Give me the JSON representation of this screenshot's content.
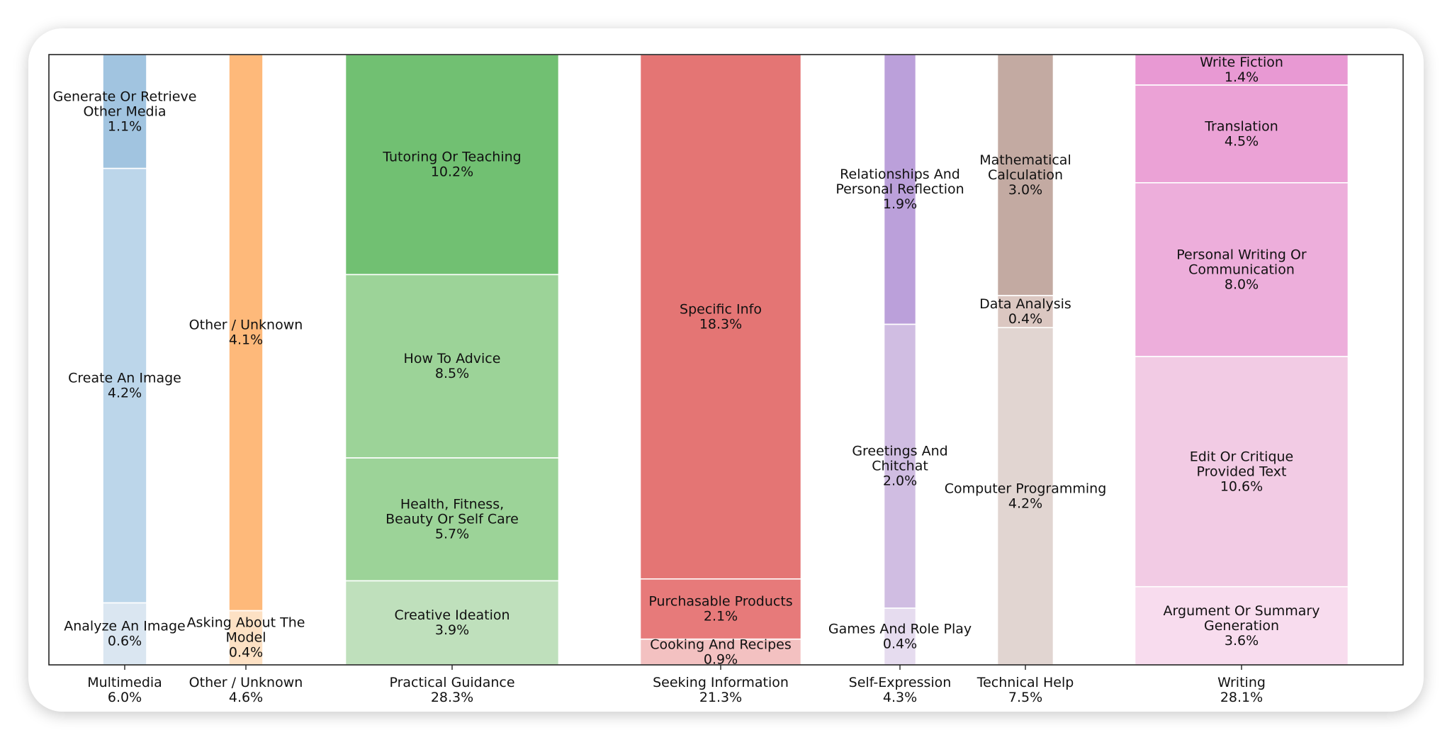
{
  "chart_data": {
    "type": "marimekko",
    "title": "",
    "xlabel": "",
    "ylabel": "",
    "legend": "none",
    "grid": false,
    "categories": [
      {
        "name": "Multimedia",
        "share": "6.0%",
        "total": 6.0,
        "segments": [
          {
            "label": [
              "Analyze An Image"
            ],
            "pct": "0.6%",
            "value": 0.6,
            "color": "#dae6f1"
          },
          {
            "label": [
              "Create An Image"
            ],
            "pct": "4.2%",
            "value": 4.2,
            "color": "#bcd6ea"
          },
          {
            "label": [
              "Generate Or Retrieve",
              "Other Media"
            ],
            "pct": "1.1%",
            "value": 1.1,
            "color": "#a1c4e0"
          }
        ]
      },
      {
        "name": "Other / Unknown",
        "share": "4.6%",
        "total": 4.6,
        "segments": [
          {
            "label": [
              "Asking About The",
              "Model"
            ],
            "pct": "0.4%",
            "value": 0.4,
            "color": "#fde1c4"
          },
          {
            "label": [
              "Other / Unknown"
            ],
            "pct": "4.1%",
            "value": 4.1,
            "color": "#feb97a"
          }
        ]
      },
      {
        "name": "Practical Guidance",
        "share": "28.3%",
        "total": 28.3,
        "segments": [
          {
            "label": [
              "Creative Ideation"
            ],
            "pct": "3.9%",
            "value": 3.9,
            "color": "#bfe0bc"
          },
          {
            "label": [
              "Health, Fitness,",
              "Beauty Or Self Care"
            ],
            "pct": "5.7%",
            "value": 5.7,
            "color": "#9cd398"
          },
          {
            "label": [
              "How To Advice"
            ],
            "pct": "8.5%",
            "value": 8.5,
            "color": "#9cd398"
          },
          {
            "label": [
              "Tutoring Or Teaching"
            ],
            "pct": "10.2%",
            "value": 10.2,
            "color": "#71c072"
          }
        ]
      },
      {
        "name": "Seeking Information",
        "share": "21.3%",
        "total": 21.3,
        "segments": [
          {
            "label": [
              "Cooking And Recipes"
            ],
            "pct": "0.9%",
            "value": 0.9,
            "color": "#f3c1c1"
          },
          {
            "label": [
              "Purchasable Products"
            ],
            "pct": "2.1%",
            "value": 2.1,
            "color": "#e77a7a"
          },
          {
            "label": [
              "Specific Info"
            ],
            "pct": "18.3%",
            "value": 18.3,
            "color": "#e47574"
          }
        ]
      },
      {
        "name": "Self-Expression",
        "share": "4.3%",
        "total": 4.3,
        "segments": [
          {
            "label": [
              "Games And Role Play"
            ],
            "pct": "0.4%",
            "value": 0.4,
            "color": "#e6dcef"
          },
          {
            "label": [
              "Greetings And",
              "Chitchat"
            ],
            "pct": "2.0%",
            "value": 2.0,
            "color": "#d0bde2"
          },
          {
            "label": [
              "Relationships And",
              "Personal Reflection"
            ],
            "pct": "1.9%",
            "value": 1.9,
            "color": "#bba0da"
          }
        ]
      },
      {
        "name": "Technical Help",
        "share": "7.5%",
        "total": 7.5,
        "segments": [
          {
            "label": [
              "Computer Programming"
            ],
            "pct": "4.2%",
            "value": 4.2,
            "color": "#e1d5d1"
          },
          {
            "label": [
              "Data Analysis"
            ],
            "pct": "0.4%",
            "value": 0.4,
            "color": "#dbc7c1"
          },
          {
            "label": [
              "Mathematical",
              "Calculation"
            ],
            "pct": "3.0%",
            "value": 3.0,
            "color": "#c3aaa2"
          }
        ]
      },
      {
        "name": "Writing",
        "share": "28.1%",
        "total": 28.1,
        "segments": [
          {
            "label": [
              "Argument Or Summary",
              "Generation"
            ],
            "pct": "3.6%",
            "value": 3.6,
            "color": "#f8dcee"
          },
          {
            "label": [
              "Edit Or Critique",
              "Provided Text"
            ],
            "pct": "10.6%",
            "value": 10.6,
            "color": "#f2cbe4"
          },
          {
            "label": [
              "Personal Writing Or",
              "Communication"
            ],
            "pct": "8.0%",
            "value": 8.0,
            "color": "#edaedb"
          },
          {
            "label": [
              "Translation"
            ],
            "pct": "4.5%",
            "value": 4.5,
            "color": "#eba2d6"
          },
          {
            "label": [
              "Write Fiction"
            ],
            "pct": "1.4%",
            "value": 1.4,
            "color": "#e899d3"
          }
        ]
      }
    ]
  }
}
